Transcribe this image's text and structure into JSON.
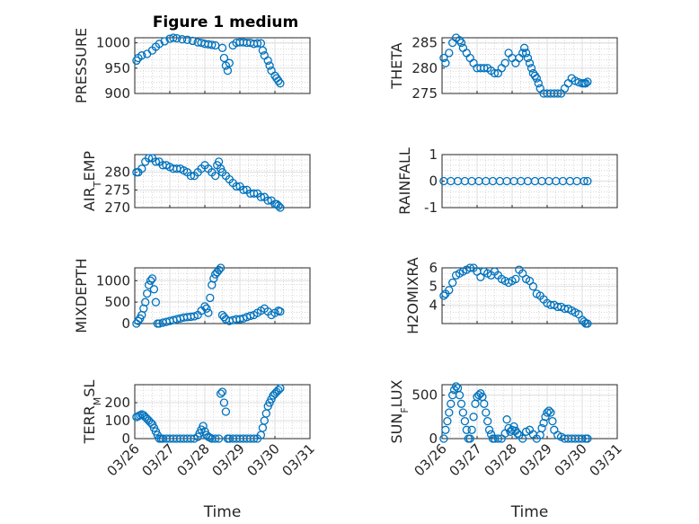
{
  "figure": {
    "title": "Figure 1 medium"
  },
  "colors": {
    "marker": "#0072BD",
    "axis": "#262626",
    "grid": "#dfdfdf",
    "minor_grid": "#c0c0c0"
  },
  "chart_data": [
    {
      "type": "scatter",
      "ylabel": "PRESSURE",
      "ylim": [
        900,
        1010
      ],
      "yticks": [
        900,
        950,
        1000
      ],
      "ytick_labels": [
        "900",
        "950",
        "1000"
      ],
      "xlim": [
        0,
        5
      ],
      "show_xticklabels": false,
      "x": [
        0.05,
        0.1,
        0.2,
        0.35,
        0.5,
        0.6,
        0.7,
        0.85,
        1.0,
        1.1,
        1.2,
        1.35,
        1.5,
        1.65,
        1.8,
        1.9,
        2.0,
        2.1,
        2.2,
        2.3,
        2.5,
        2.55,
        2.6,
        2.65,
        2.7,
        2.8,
        2.9,
        3.0,
        3.1,
        3.2,
        3.3,
        3.4,
        3.5,
        3.6,
        3.65,
        3.7,
        3.8,
        3.85,
        3.9,
        4.0,
        4.05,
        4.1,
        4.15
      ],
      "y": [
        965,
        970,
        975,
        978,
        985,
        992,
        998,
        1003,
        1008,
        1010,
        1009,
        1007,
        1006,
        1004,
        1001,
        1000,
        998,
        997,
        996,
        995,
        990,
        970,
        955,
        945,
        960,
        995,
        1000,
        1001,
        1001,
        1000,
        1000,
        998,
        999,
        999,
        985,
        975,
        965,
        955,
        945,
        935,
        930,
        925,
        920
      ]
    },
    {
      "type": "scatter",
      "ylabel": "THETA",
      "ylim": [
        275,
        286
      ],
      "yticks": [
        275,
        280,
        285
      ],
      "ytick_labels": [
        "275",
        "280",
        "285"
      ],
      "xlim": [
        0,
        5
      ],
      "show_xticklabels": false,
      "x": [
        0.05,
        0.1,
        0.2,
        0.3,
        0.4,
        0.5,
        0.55,
        0.6,
        0.7,
        0.8,
        0.9,
        1.0,
        1.1,
        1.2,
        1.3,
        1.4,
        1.5,
        1.6,
        1.7,
        1.8,
        1.9,
        2.0,
        2.1,
        2.2,
        2.3,
        2.35,
        2.4,
        2.45,
        2.5,
        2.55,
        2.6,
        2.65,
        2.7,
        2.75,
        2.8,
        2.9,
        3.0,
        3.1,
        3.2,
        3.3,
        3.4,
        3.5,
        3.6,
        3.7,
        3.8,
        3.9,
        4.0,
        4.05,
        4.1,
        4.15
      ],
      "y": [
        282,
        281,
        283,
        285,
        286,
        285.5,
        285,
        284,
        283,
        282,
        281,
        280,
        280,
        280,
        280,
        279.5,
        279,
        279,
        280,
        281,
        283,
        282,
        281,
        282,
        283,
        284,
        283,
        282,
        281,
        280,
        279,
        278.5,
        278,
        277,
        276,
        275,
        275,
        274.5,
        274,
        274.5,
        275,
        276,
        277,
        278,
        277.5,
        277.2,
        277,
        277,
        277,
        277.3
      ]
    },
    {
      "type": "scatter",
      "ylabel": "AIR_TEMP",
      "ylim": [
        270,
        285
      ],
      "yticks": [
        270,
        275,
        280
      ],
      "ytick_labels": [
        "270",
        "275",
        "280"
      ],
      "xlim": [
        0,
        5
      ],
      "show_xticklabels": false,
      "x": [
        0.05,
        0.1,
        0.2,
        0.3,
        0.4,
        0.5,
        0.6,
        0.7,
        0.8,
        0.9,
        1.0,
        1.1,
        1.2,
        1.3,
        1.4,
        1.5,
        1.6,
        1.7,
        1.8,
        1.9,
        2.0,
        2.1,
        2.2,
        2.3,
        2.35,
        2.4,
        2.45,
        2.5,
        2.6,
        2.7,
        2.8,
        2.9,
        3.0,
        3.1,
        3.2,
        3.3,
        3.4,
        3.5,
        3.6,
        3.7,
        3.8,
        3.9,
        4.0,
        4.05,
        4.1,
        4.15
      ],
      "y": [
        280,
        280,
        281,
        283,
        284,
        284,
        283,
        283,
        282,
        282,
        281.5,
        281,
        281,
        281,
        280.5,
        280,
        279,
        279,
        280,
        281,
        282,
        281,
        280,
        279,
        282,
        283,
        281,
        280,
        279,
        278,
        277,
        276,
        276,
        275,
        275,
        274,
        274,
        274,
        273,
        273,
        272,
        272,
        271,
        271,
        270.5,
        270
      ]
    },
    {
      "type": "scatter",
      "ylabel": "RAINFALL",
      "ylim": [
        -1,
        1
      ],
      "yticks": [
        -1,
        0,
        1
      ],
      "ytick_labels": [
        "-1",
        "0",
        "1"
      ],
      "xlim": [
        0,
        5
      ],
      "show_xticklabels": false,
      "x": [
        0.05,
        0.25,
        0.45,
        0.65,
        0.85,
        1.05,
        1.25,
        1.45,
        1.65,
        1.85,
        2.05,
        2.25,
        2.45,
        2.65,
        2.85,
        3.05,
        3.25,
        3.45,
        3.65,
        3.85,
        4.05,
        4.15
      ],
      "y": [
        0,
        0,
        0,
        0,
        0,
        0,
        0,
        0,
        0,
        0,
        0,
        0,
        0,
        0,
        0,
        0,
        0,
        0,
        0,
        0,
        0,
        0
      ]
    },
    {
      "type": "scatter",
      "ylabel": "MIXDEPTH",
      "ylim": [
        0,
        1300
      ],
      "yticks": [
        0,
        500,
        1000
      ],
      "ytick_labels": [
        "0",
        "500",
        "1000"
      ],
      "xlim": [
        0,
        5
      ],
      "show_xticklabels": false,
      "x": [
        0.05,
        0.1,
        0.15,
        0.2,
        0.25,
        0.3,
        0.35,
        0.4,
        0.45,
        0.5,
        0.55,
        0.6,
        0.65,
        0.7,
        0.8,
        0.9,
        1.0,
        1.1,
        1.2,
        1.3,
        1.4,
        1.5,
        1.6,
        1.7,
        1.8,
        1.9,
        2.0,
        2.05,
        2.1,
        2.15,
        2.2,
        2.25,
        2.3,
        2.35,
        2.4,
        2.45,
        2.5,
        2.55,
        2.6,
        2.7,
        2.8,
        2.9,
        3.0,
        3.1,
        3.2,
        3.3,
        3.4,
        3.5,
        3.6,
        3.7,
        3.8,
        3.9,
        4.0,
        4.1,
        4.15
      ],
      "y": [
        0,
        60,
        120,
        200,
        350,
        500,
        700,
        900,
        1000,
        1050,
        800,
        500,
        0,
        0,
        20,
        40,
        60,
        80,
        100,
        120,
        140,
        150,
        160,
        170,
        200,
        300,
        400,
        350,
        250,
        600,
        900,
        1050,
        1150,
        1200,
        1250,
        1300,
        200,
        150,
        100,
        60,
        80,
        100,
        100,
        120,
        150,
        180,
        200,
        250,
        300,
        350,
        280,
        200,
        250,
        300,
        280
      ]
    },
    {
      "type": "scatter",
      "ylabel": "H2OMIXRA",
      "ylim": [
        3,
        6
      ],
      "yticks": [
        4,
        5,
        6
      ],
      "ytick_labels": [
        "4",
        "5",
        "6"
      ],
      "xlim": [
        0,
        5
      ],
      "show_xticklabels": false,
      "x": [
        0.05,
        0.1,
        0.2,
        0.3,
        0.4,
        0.5,
        0.6,
        0.7,
        0.8,
        0.9,
        1.0,
        1.1,
        1.2,
        1.3,
        1.4,
        1.5,
        1.6,
        1.7,
        1.8,
        1.9,
        2.0,
        2.1,
        2.2,
        2.3,
        2.4,
        2.5,
        2.6,
        2.7,
        2.8,
        2.9,
        3.0,
        3.1,
        3.2,
        3.3,
        3.4,
        3.5,
        3.6,
        3.7,
        3.8,
        3.9,
        4.0,
        4.05,
        4.1,
        4.15
      ],
      "y": [
        4.5,
        4.6,
        4.8,
        5.2,
        5.6,
        5.7,
        5.8,
        5.9,
        6.0,
        6.0,
        5.8,
        5.5,
        5.8,
        5.7,
        5.6,
        5.8,
        5.6,
        5.4,
        5.3,
        5.2,
        5.3,
        5.4,
        5.9,
        5.7,
        5.4,
        5.3,
        5.0,
        4.6,
        4.5,
        4.3,
        4.1,
        4.0,
        4.0,
        3.9,
        3.9,
        3.8,
        3.8,
        3.7,
        3.6,
        3.5,
        3.2,
        3.1,
        3.0,
        3.0
      ]
    },
    {
      "type": "scatter",
      "ylabel": "TERR_MSL",
      "ylim": [
        0,
        300
      ],
      "yticks": [
        0,
        100,
        200
      ],
      "ytick_labels": [
        "0",
        "100",
        "200"
      ],
      "xlim": [
        0,
        5
      ],
      "show_xticklabels": true,
      "xticks": [
        0,
        1,
        2,
        3,
        4,
        5
      ],
      "xtick_labels": [
        "03/26",
        "03/27",
        "03/28",
        "03/29",
        "03/30",
        "03/31"
      ],
      "xlabel": "Time",
      "x": [
        0.05,
        0.1,
        0.15,
        0.2,
        0.25,
        0.3,
        0.35,
        0.4,
        0.45,
        0.5,
        0.55,
        0.6,
        0.65,
        0.7,
        0.75,
        0.8,
        0.9,
        1.0,
        1.1,
        1.2,
        1.3,
        1.4,
        1.5,
        1.6,
        1.7,
        1.8,
        1.85,
        1.9,
        1.95,
        2.0,
        2.05,
        2.1,
        2.15,
        2.2,
        2.3,
        2.4,
        2.45,
        2.5,
        2.55,
        2.6,
        2.65,
        2.7,
        2.8,
        2.9,
        3.0,
        3.1,
        3.2,
        3.3,
        3.4,
        3.5,
        3.6,
        3.65,
        3.7,
        3.75,
        3.8,
        3.85,
        3.9,
        3.95,
        4.0,
        4.05,
        4.1,
        4.15
      ],
      "y": [
        120,
        125,
        130,
        135,
        130,
        120,
        110,
        100,
        90,
        80,
        60,
        40,
        20,
        0,
        0,
        0,
        0,
        0,
        0,
        0,
        0,
        0,
        0,
        0,
        0,
        10,
        30,
        50,
        70,
        40,
        20,
        10,
        5,
        0,
        0,
        0,
        250,
        260,
        200,
        150,
        0,
        0,
        0,
        0,
        0,
        0,
        0,
        0,
        0,
        0,
        20,
        60,
        100,
        140,
        180,
        200,
        220,
        240,
        250,
        260,
        270,
        280
      ]
    },
    {
      "type": "scatter",
      "ylabel": "SUN_FLUX",
      "ylim": [
        0,
        620
      ],
      "yticks": [
        0,
        500
      ],
      "ytick_labels": [
        "0",
        "500"
      ],
      "xlim": [
        0,
        5
      ],
      "show_xticklabels": true,
      "xticks": [
        0,
        1,
        2,
        3,
        4,
        5
      ],
      "xtick_labels": [
        "03/26",
        "03/27",
        "03/28",
        "03/29",
        "03/30",
        "03/31"
      ],
      "xlabel": "Time",
      "x": [
        0.05,
        0.1,
        0.15,
        0.2,
        0.25,
        0.3,
        0.35,
        0.4,
        0.45,
        0.5,
        0.55,
        0.6,
        0.65,
        0.7,
        0.75,
        0.8,
        0.85,
        0.9,
        0.95,
        1.0,
        1.05,
        1.1,
        1.15,
        1.2,
        1.25,
        1.3,
        1.35,
        1.4,
        1.45,
        1.5,
        1.6,
        1.7,
        1.8,
        1.85,
        1.9,
        1.95,
        2.0,
        2.05,
        2.1,
        2.15,
        2.2,
        2.3,
        2.4,
        2.5,
        2.6,
        2.7,
        2.8,
        2.85,
        2.9,
        2.95,
        3.0,
        3.05,
        3.1,
        3.15,
        3.2,
        3.3,
        3.4,
        3.5,
        3.6,
        3.7,
        3.8,
        3.9,
        4.0,
        4.1,
        4.15
      ],
      "y": [
        0,
        100,
        200,
        300,
        400,
        500,
        560,
        600,
        580,
        500,
        400,
        300,
        200,
        100,
        0,
        0,
        100,
        250,
        400,
        480,
        500,
        520,
        480,
        400,
        300,
        200,
        100,
        50,
        0,
        0,
        0,
        0,
        60,
        220,
        120,
        80,
        100,
        140,
        90,
        60,
        40,
        0,
        80,
        100,
        50,
        0,
        40,
        120,
        180,
        250,
        300,
        320,
        300,
        200,
        100,
        40,
        20,
        0,
        0,
        0,
        0,
        0,
        0,
        0,
        0
      ]
    }
  ]
}
